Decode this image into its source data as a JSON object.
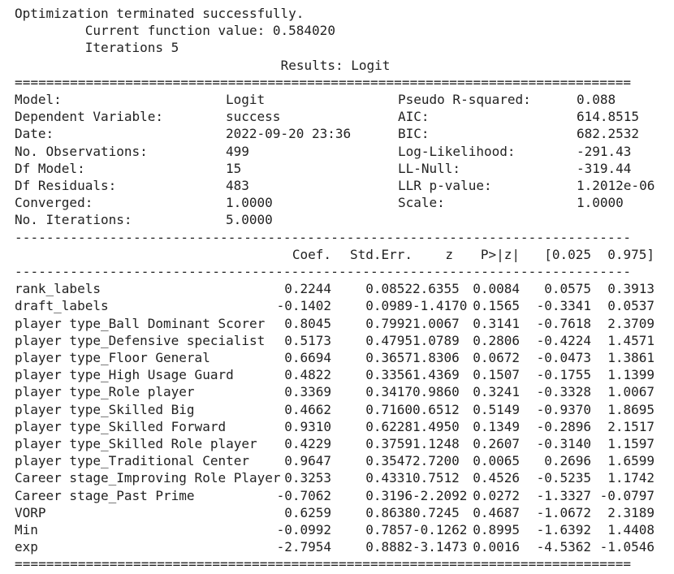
{
  "header": {
    "status_line": "Optimization terminated successfully.",
    "function_value_line": "         Current function value: 0.584020",
    "iterations_line": "         Iterations 5",
    "title": "Results: Logit"
  },
  "summary": {
    "left": [
      {
        "label": "Model:",
        "value": "Logit"
      },
      {
        "label": "Dependent Variable:",
        "value": "success"
      },
      {
        "label": "Date:",
        "value": "2022-09-20 23:36"
      },
      {
        "label": "No. Observations:",
        "value": "499"
      },
      {
        "label": "Df Model:",
        "value": "15"
      },
      {
        "label": "Df Residuals:",
        "value": "483"
      },
      {
        "label": "Converged:",
        "value": "1.0000"
      },
      {
        "label": "No. Iterations:",
        "value": "5.0000"
      }
    ],
    "right": [
      {
        "label": "Pseudo R-squared:",
        "value": "0.088"
      },
      {
        "label": "AIC:",
        "value": "614.8515"
      },
      {
        "label": "BIC:",
        "value": "682.2532"
      },
      {
        "label": "Log-Likelihood:",
        "value": "-291.43"
      },
      {
        "label": "LL-Null:",
        "value": "-319.44"
      },
      {
        "label": "LLR p-value:",
        "value": "1.2012e-06"
      },
      {
        "label": "Scale:",
        "value": "1.0000"
      },
      {
        "label": "",
        "value": ""
      }
    ]
  },
  "coef_table": {
    "columns": [
      "Coef.",
      "Std.Err.",
      "z",
      "P>|z|",
      "[0.025",
      "0.975]"
    ],
    "rows": [
      {
        "name": "rank_labels",
        "values": [
          "0.2244",
          "0.0852",
          "2.6355",
          "0.0084",
          "0.0575",
          "0.3913"
        ]
      },
      {
        "name": "draft_labels",
        "values": [
          "-0.1402",
          "0.0989",
          "-1.4170",
          "0.1565",
          "-0.3341",
          "0.0537"
        ]
      },
      {
        "name": "player type_Ball Dominant Scorer",
        "values": [
          "0.8045",
          "0.7992",
          "1.0067",
          "0.3141",
          "-0.7618",
          "2.3709"
        ]
      },
      {
        "name": "player type_Defensive specialist",
        "values": [
          "0.5173",
          "0.4795",
          "1.0789",
          "0.2806",
          "-0.4224",
          "1.4571"
        ]
      },
      {
        "name": "player type_Floor General",
        "values": [
          "0.6694",
          "0.3657",
          "1.8306",
          "0.0672",
          "-0.0473",
          "1.3861"
        ]
      },
      {
        "name": "player type_High Usage Guard",
        "values": [
          "0.4822",
          "0.3356",
          "1.4369",
          "0.1507",
          "-0.1755",
          "1.1399"
        ]
      },
      {
        "name": "player type_Role player",
        "values": [
          "0.3369",
          "0.3417",
          "0.9860",
          "0.3241",
          "-0.3328",
          "1.0067"
        ]
      },
      {
        "name": "player type_Skilled Big",
        "values": [
          "0.4662",
          "0.7160",
          "0.6512",
          "0.5149",
          "-0.9370",
          "1.8695"
        ]
      },
      {
        "name": "player type_Skilled Forward",
        "values": [
          "0.9310",
          "0.6228",
          "1.4950",
          "0.1349",
          "-0.2896",
          "2.1517"
        ]
      },
      {
        "name": "player type_Skilled Role player",
        "values": [
          "0.4229",
          "0.3759",
          "1.1248",
          "0.2607",
          "-0.3140",
          "1.1597"
        ]
      },
      {
        "name": "player type_Traditional Center",
        "values": [
          "0.9647",
          "0.3547",
          "2.7200",
          "0.0065",
          "0.2696",
          "1.6599"
        ]
      },
      {
        "name": "Career stage_Improving Role Player",
        "values": [
          "0.3253",
          "0.4331",
          "0.7512",
          "0.4526",
          "-0.5235",
          "1.1742"
        ]
      },
      {
        "name": "Career stage_Past Prime",
        "values": [
          "-0.7062",
          "0.3196",
          "-2.2092",
          "0.0272",
          "-1.3327",
          "-0.0797"
        ]
      },
      {
        "name": "VORP",
        "values": [
          "0.6259",
          "0.8638",
          "0.7245",
          "0.4687",
          "-1.0672",
          "2.3189"
        ]
      },
      {
        "name": "Min",
        "values": [
          "-0.0992",
          "0.7857",
          "-0.1262",
          "0.8995",
          "-1.6392",
          "1.4408"
        ]
      },
      {
        "name": "exp",
        "values": [
          "-2.7954",
          "0.8882",
          "-3.1473",
          "0.0016",
          "-4.5362",
          "-1.0546"
        ]
      }
    ]
  },
  "separators": {
    "equals": "==============================================================================",
    "dashes": "------------------------------------------------------------------------------"
  }
}
